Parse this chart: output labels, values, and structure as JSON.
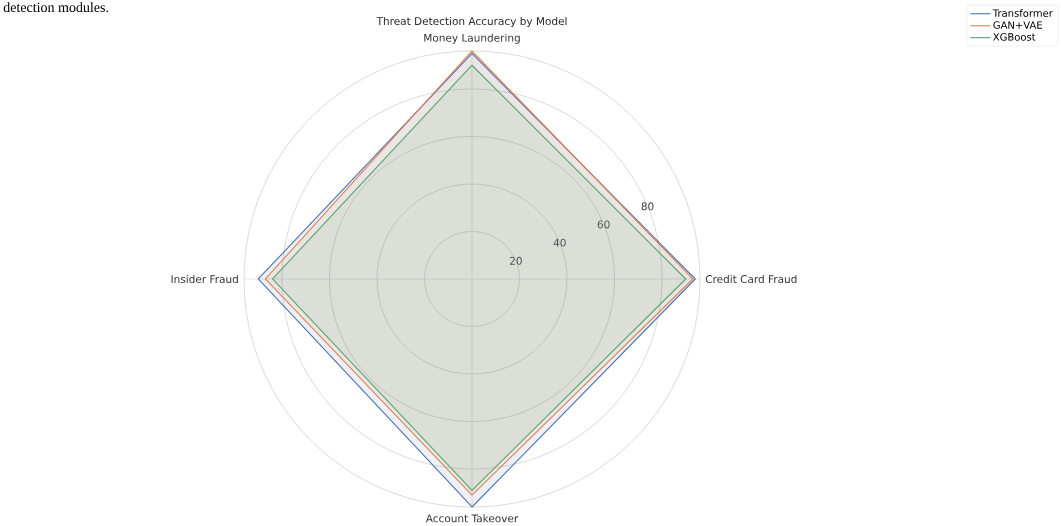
{
  "chart_data": {
    "type": "radar",
    "title": "Threat Detection Accuracy by Model",
    "categories": [
      "Money Laundering",
      "Credit Card Fraud",
      "Account Takeover",
      "Insider Fraud"
    ],
    "series": [
      {
        "name": "Transformer",
        "color": "#4c72b0",
        "values": [
          95,
          94,
          96,
          90
        ]
      },
      {
        "name": "GAN+VAE",
        "color": "#dd8452",
        "values": [
          96,
          93,
          91,
          87
        ]
      },
      {
        "name": "XGBoost",
        "color": "#55a868",
        "values": [
          90,
          90,
          89,
          84
        ]
      }
    ],
    "ylim": [
      0,
      96
    ],
    "yticks": [
      20,
      40,
      60,
      80
    ],
    "grid": true,
    "legend": "top right",
    "annotations": [
      "detection modules."
    ]
  }
}
